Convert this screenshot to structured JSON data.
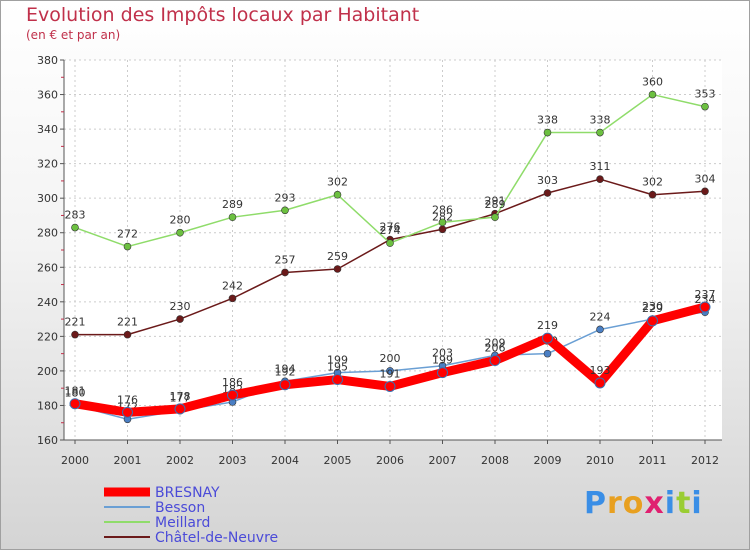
{
  "chart_data": {
    "type": "line",
    "title": "Evolution des Impôts locaux par Habitant",
    "subtitle": "(en € et par an)",
    "categories": [
      "2000",
      "2001",
      "2002",
      "2003",
      "2004",
      "2005",
      "2006",
      "2007",
      "2008",
      "2009",
      "2010",
      "2011",
      "2012"
    ],
    "ylim": [
      160,
      380
    ],
    "yticks": [
      160,
      180,
      200,
      220,
      240,
      260,
      280,
      300,
      320,
      340,
      360,
      380
    ],
    "grid": true,
    "series": [
      {
        "name": "Châtel-de-Neuvre",
        "color": "#6b1a1a",
        "marker": "#6b1a1a",
        "values": [
          221,
          221,
          230,
          242,
          257,
          259,
          276,
          282,
          291,
          303,
          311,
          302,
          304
        ]
      },
      {
        "name": "Meillard",
        "color": "#8fdc6a",
        "marker": "#6cc040",
        "values": [
          283,
          272,
          280,
          289,
          293,
          302,
          274,
          286,
          289,
          338,
          338,
          360,
          353
        ]
      },
      {
        "name": "Besson",
        "color": "#6a9fd4",
        "marker": "#4a7fc4",
        "values": [
          180,
          172,
          177,
          182,
          194,
          199,
          200,
          203,
          209,
          210,
          224,
          230,
          234
        ]
      },
      {
        "name": "BRESNAY",
        "color": "#ff0000",
        "marker": "#ff0000",
        "values": [
          181,
          176,
          178,
          186,
          192,
          195,
          191,
          199,
          206,
          219,
          193,
          229,
          237
        ]
      }
    ],
    "legend": [
      "BRESNAY",
      "Besson",
      "Meillard",
      "Châtel-de-Neuvre"
    ],
    "legend_position": "bottom-left"
  },
  "logo": {
    "letters": [
      "P",
      "r",
      "o",
      "x",
      "i",
      "t",
      "i"
    ],
    "colors": [
      "#3a8ee6",
      "#e8a020",
      "#e8a020",
      "#e02070",
      "#3a8ee6",
      "#9acd32",
      "#3a8ee6"
    ]
  }
}
